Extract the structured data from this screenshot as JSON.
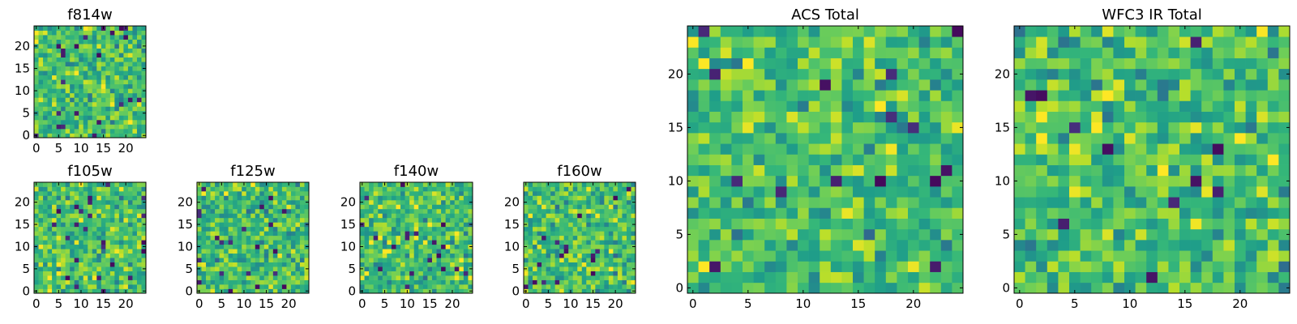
{
  "chart_data": [
    {
      "type": "heatmap",
      "title": "f814w",
      "grid_size": 25,
      "seed": 814,
      "colormap": "viridis",
      "x_ticks": [
        "0",
        "5",
        "10",
        "15",
        "20"
      ],
      "y_ticks": [
        "0",
        "5",
        "10",
        "15",
        "20"
      ],
      "xlim": [
        -0.5,
        24.5
      ],
      "ylim": [
        -0.5,
        24.5
      ]
    },
    {
      "type": "heatmap",
      "title": "f105w",
      "grid_size": 25,
      "seed": 105,
      "colormap": "viridis",
      "x_ticks": [
        "0",
        "5",
        "10",
        "15",
        "20"
      ],
      "y_ticks": [
        "0",
        "5",
        "10",
        "15",
        "20"
      ],
      "xlim": [
        -0.5,
        24.5
      ],
      "ylim": [
        -0.5,
        24.5
      ]
    },
    {
      "type": "heatmap",
      "title": "f125w",
      "grid_size": 25,
      "seed": 125,
      "colormap": "viridis",
      "x_ticks": [
        "0",
        "5",
        "10",
        "15",
        "20"
      ],
      "y_ticks": [
        "0",
        "5",
        "10",
        "15",
        "20"
      ],
      "xlim": [
        -0.5,
        24.5
      ],
      "ylim": [
        -0.5,
        24.5
      ]
    },
    {
      "type": "heatmap",
      "title": "f140w",
      "grid_size": 25,
      "seed": 140,
      "colormap": "viridis",
      "x_ticks": [
        "0",
        "5",
        "10",
        "15",
        "20"
      ],
      "y_ticks": [
        "0",
        "5",
        "10",
        "15",
        "20"
      ],
      "xlim": [
        -0.5,
        24.5
      ],
      "ylim": [
        -0.5,
        24.5
      ]
    },
    {
      "type": "heatmap",
      "title": "f160w",
      "grid_size": 25,
      "seed": 160,
      "colormap": "viridis",
      "x_ticks": [
        "0",
        "5",
        "10",
        "15",
        "20"
      ],
      "y_ticks": [
        "0",
        "5",
        "10",
        "15",
        "20"
      ],
      "xlim": [
        -0.5,
        24.5
      ],
      "ylim": [
        -0.5,
        24.5
      ]
    },
    {
      "type": "heatmap",
      "title": "ACS Total",
      "grid_size": 25,
      "seed": 2001,
      "colormap": "viridis",
      "x_ticks": [
        "0",
        "5",
        "10",
        "15",
        "20"
      ],
      "y_ticks": [
        "0",
        "5",
        "10",
        "15",
        "20"
      ],
      "xlim": [
        -0.5,
        24.5
      ],
      "ylim": [
        -0.5,
        24.5
      ]
    },
    {
      "type": "heatmap",
      "title": "WFC3 IR Total",
      "grid_size": 25,
      "seed": 3003,
      "colormap": "viridis",
      "x_ticks": [
        "0",
        "5",
        "10",
        "15",
        "20"
      ],
      "y_ticks": [
        "0",
        "5",
        "10",
        "15",
        "20"
      ],
      "xlim": [
        -0.5,
        24.5
      ],
      "ylim": [
        -0.5,
        24.5
      ]
    }
  ]
}
